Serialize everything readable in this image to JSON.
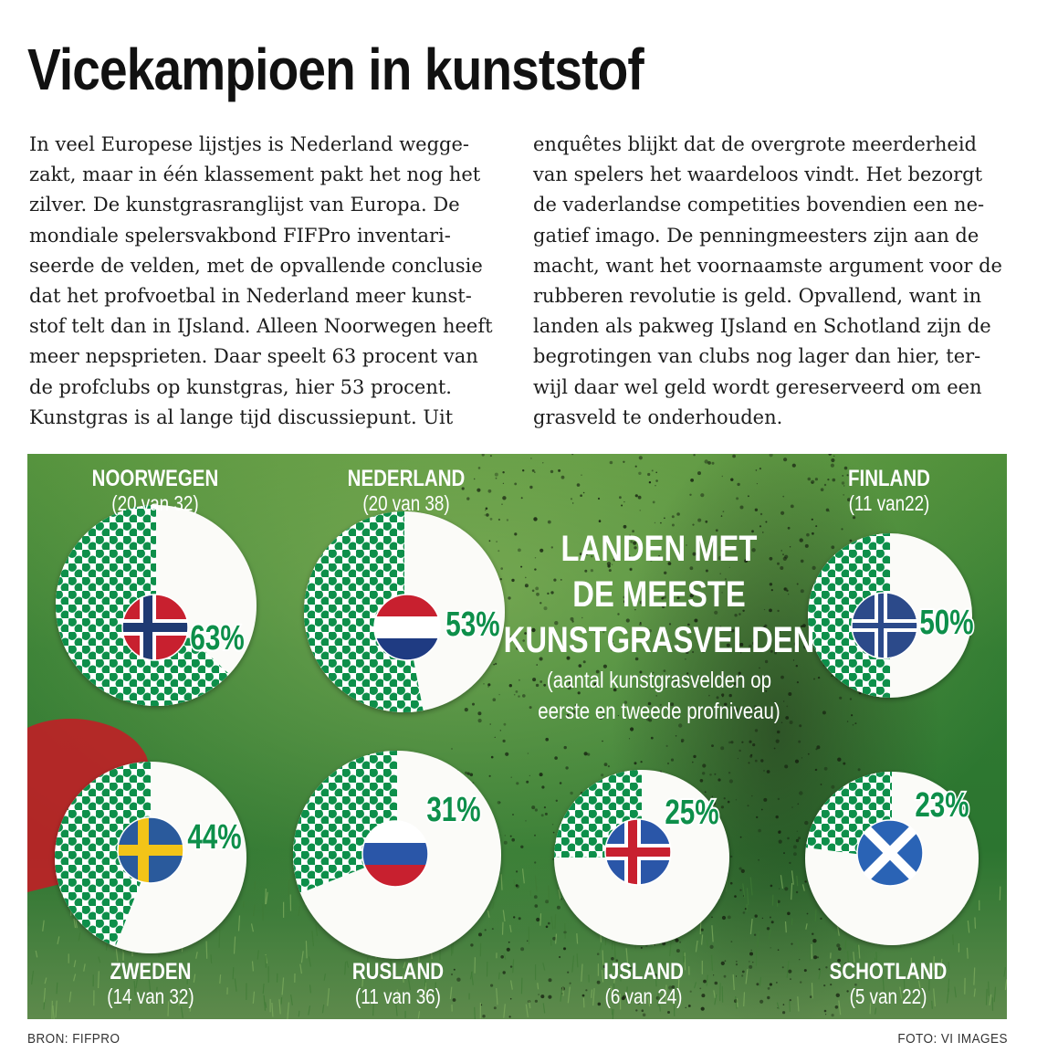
{
  "article": {
    "title": "Vicekampioen in kunststof",
    "left_lines": [
      "In veel Europese lijstjes is Nederland wegge-",
      "zakt, maar in één klassement pakt het nog het",
      "zilver. De kunstgrasranglijst van Europa. De",
      "mondiale spelersvakbond FIFPro inventari-",
      "seerde de velden, met de opvallende conclusie",
      "dat het profvoetbal in Nederland meer kunst-",
      "stof telt dan in IJsland. Alleen Noorwegen heeft",
      "meer nepsprieten. Daar speelt 63 procent van",
      "de profclubs op kunstgras, hier 53 procent.",
      "Kunstgras is al lange tijd discussiepunt. Uit"
    ],
    "right_lines": [
      "enquêtes blijkt dat de overgrote meerderheid",
      "van spelers het waardeloos vindt. Het bezorgt",
      "de vaderlandse competities bovendien een ne-",
      "gatief imago. De penningmeesters zijn aan de",
      "macht, want het voornaamste argument voor de",
      "rubberen revolutie is geld. Opvallend, want in",
      "landen als pakweg IJsland en Schotland zijn de",
      "begrotingen van clubs nog lager dan hier, ter-",
      "wijl daar wel geld wordt gereserveerd om een",
      "grasveld te onderhouden."
    ]
  },
  "colors": {
    "turf_green": "#0d8f4a",
    "pie_white": "#fbfbf8",
    "label_white": "#ffffff",
    "pct_green": "#0d8f4a"
  },
  "chart_data": {
    "type": "pie",
    "title": "LANDEN MET DE MEESTE KUNSTGRASVELDEN",
    "title_lines": [
      "LANDEN MET",
      "DE MEESTE",
      "KUNSTGRASVELDEN"
    ],
    "subtitle_lines": [
      "(aantal kunstgrasvelden op",
      "eerste en tweede profniveau)"
    ],
    "unit": "percent of professional clubs on artificial turf",
    "countries": [
      {
        "name": "NOORWEGEN",
        "count_label": "(20 van 32)",
        "artificial": 20,
        "total": 32,
        "percent": 63,
        "percent_label": "63%",
        "flag": "norway-flag-icon"
      },
      {
        "name": "NEDERLAND",
        "count_label": "(20 van 38)",
        "artificial": 20,
        "total": 38,
        "percent": 53,
        "percent_label": "53%",
        "flag": "netherlands-flag-icon"
      },
      {
        "name": "FINLAND",
        "count_label": "(11 van22)",
        "artificial": 11,
        "total": 22,
        "percent": 50,
        "percent_label": "50%",
        "flag": "finland-flag-icon"
      },
      {
        "name": "ZWEDEN",
        "count_label": "(14 van 32)",
        "artificial": 14,
        "total": 32,
        "percent": 44,
        "percent_label": "44%",
        "flag": "sweden-flag-icon"
      },
      {
        "name": "RUSLAND",
        "count_label": "(11 van 36)",
        "artificial": 11,
        "total": 36,
        "percent": 31,
        "percent_label": "31%",
        "flag": "russia-flag-icon"
      },
      {
        "name": "IJSLAND",
        "count_label": "(6 van 24)",
        "artificial": 6,
        "total": 24,
        "percent": 25,
        "percent_label": "25%",
        "flag": "iceland-flag-icon"
      },
      {
        "name": "SCHOTLAND",
        "count_label": "(5 van 22)",
        "artificial": 5,
        "total": 22,
        "percent": 23,
        "percent_label": "23%",
        "flag": "scotland-flag-icon"
      }
    ]
  },
  "footer": {
    "source": "BRON: FIFPRO",
    "photo_credit": "FOTO: VI IMAGES"
  }
}
